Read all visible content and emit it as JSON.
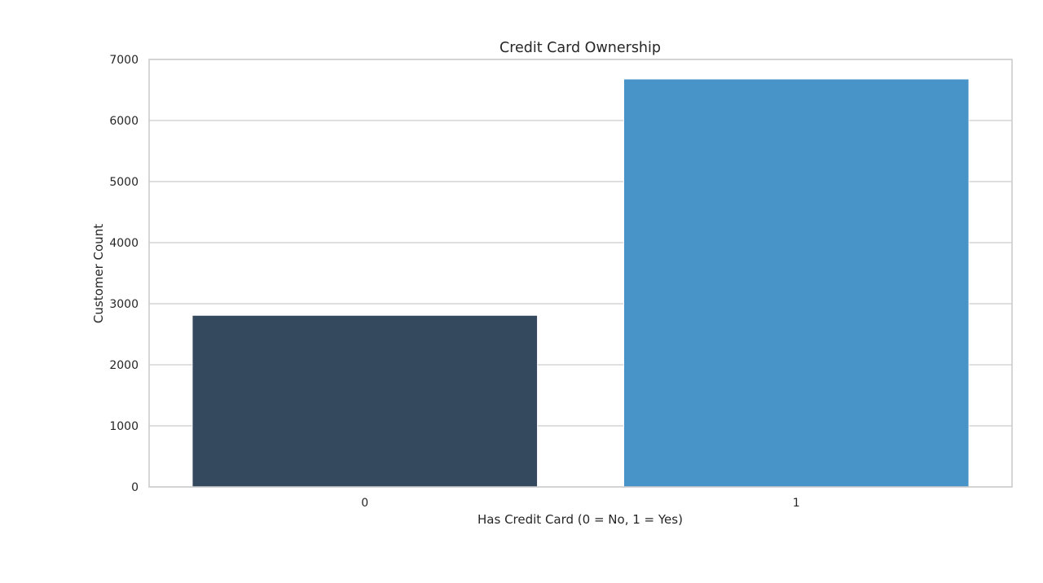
{
  "chart_data": {
    "type": "bar",
    "title": "Credit Card Ownership",
    "xlabel": "Has Credit Card (0 = No, 1 = Yes)",
    "ylabel": "Customer Count",
    "categories": [
      "0",
      "1"
    ],
    "values": [
      2810,
      6680
    ],
    "colors": [
      "#34495e",
      "#4893c7"
    ],
    "ylim": [
      0,
      7000
    ],
    "yticks": [
      0,
      1000,
      2000,
      3000,
      4000,
      5000,
      6000,
      7000
    ],
    "grid": true,
    "grid_color": "#cccccc",
    "frame_color": "#cccccc",
    "text_color": "#262626",
    "background": "#ffffff"
  }
}
